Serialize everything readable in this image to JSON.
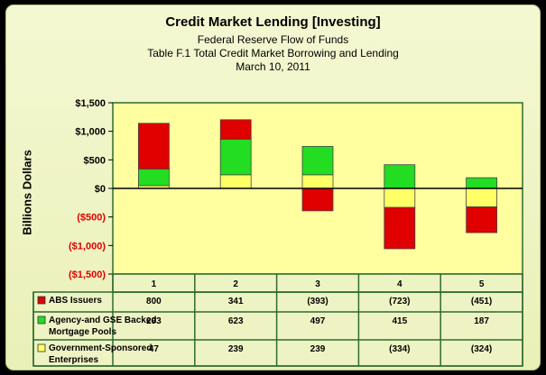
{
  "chart_data": {
    "type": "bar",
    "stacked": true,
    "title": "Credit Market Lending [Investing]",
    "subtitle_lines": [
      "Federal Reserve Flow of Funds",
      "Table F.1 Total Credit Market Borrowing and Lending",
      "March 10, 2011"
    ],
    "ylabel": "Billions Dollars",
    "xlabel": "",
    "categories": [
      "1",
      "2",
      "3",
      "4",
      "5"
    ],
    "ylim": [
      -1500,
      1500
    ],
    "yticks": [
      1500,
      1000,
      500,
      0,
      -500,
      -1000,
      -1500
    ],
    "ytick_labels": [
      "$1,500",
      "$1,000",
      "$500",
      "$0",
      "($500)",
      "($1,000)",
      "($1,500)"
    ],
    "grid": false,
    "legend": "data-table-below",
    "series": [
      {
        "name": "ABS Issuers",
        "color": "#e00000",
        "values": [
          800,
          341,
          -393,
          -723,
          -451
        ],
        "labels": [
          "800",
          "341",
          "(393)",
          "(723)",
          "(451)"
        ]
      },
      {
        "name": "Agency-and GSE Backed Mortgage Pools",
        "color": "#22dd22",
        "values": [
          293,
          623,
          497,
          415,
          187
        ],
        "labels": [
          "293",
          "623",
          "497",
          "415",
          "187"
        ]
      },
      {
        "name": "Government-Sponsored Enterprises",
        "color": "#ffff66",
        "values": [
          47,
          239,
          239,
          -334,
          -324
        ],
        "labels": [
          "47",
          "239",
          "239",
          "(334)",
          "(324)"
        ]
      }
    ]
  },
  "legend_rows": [
    {
      "line1": "ABS Issuers",
      "line2": ""
    },
    {
      "line1": "Agency-and GSE Backed",
      "line2": "Mortgage Pools"
    },
    {
      "line1": "Government-Sponsored",
      "line2": "Enterprises"
    }
  ]
}
